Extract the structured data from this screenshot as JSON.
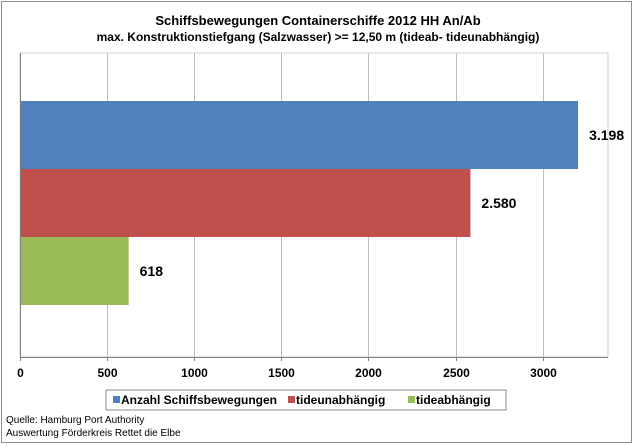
{
  "chart_data": {
    "type": "bar",
    "orientation": "horizontal",
    "title": "Schiffsbewegungen  Containerschiffe  2012 HH An/Ab",
    "subtitle": "max. Konstruktionstiefgang  (Salzwasser)  >= 12,50 m (tideab-  tideunabhängig)",
    "series": [
      {
        "name": "Anzahl Schiffsbewegungen",
        "value": 3198,
        "label": "3.198",
        "color": "#4f81bd"
      },
      {
        "name": "tideunabhängig",
        "value": 2580,
        "label": "2.580",
        "color": "#c0504d"
      },
      {
        "name": "tideabhängig",
        "value": 618,
        "label": "618",
        "color": "#9bbb59"
      }
    ],
    "xlim": [
      0,
      3500
    ],
    "xticks": [
      "0",
      "500",
      "1000",
      "1500",
      "2000",
      "2500",
      "3000"
    ],
    "xtick_values": [
      0,
      500,
      1000,
      1500,
      2000,
      2500,
      3000
    ],
    "grid": true,
    "legend_position": "bottom"
  },
  "source": {
    "line1": "Quelle: Hamburg Port Authority",
    "line2": "Auswertung Förderkreis Rettet die Elbe"
  }
}
